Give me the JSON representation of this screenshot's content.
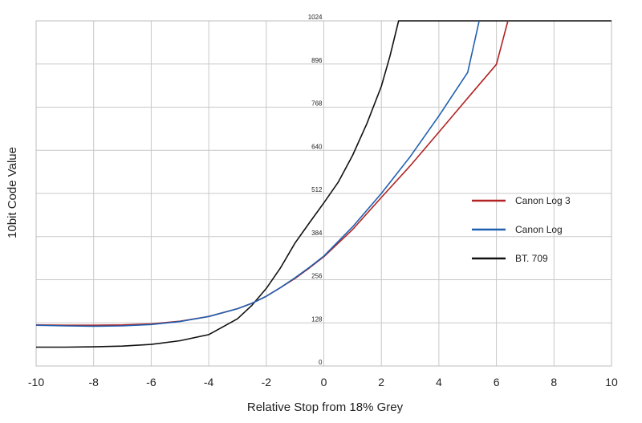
{
  "chart_data": {
    "type": "line",
    "title": "",
    "xlabel": "Relative Stop from 18% Grey",
    "ylabel": "10bit Code Value",
    "xlim": [
      -10,
      10
    ],
    "ylim": [
      0,
      1024
    ],
    "grid": true,
    "legend_position": "right",
    "x_ticks": [
      "-10",
      "-8",
      "-6",
      "-4",
      "-2",
      "0",
      "2",
      "4",
      "6",
      "8",
      "10"
    ],
    "y_ticks": [
      "0",
      "128",
      "256",
      "384",
      "512",
      "640",
      "768",
      "896",
      "1024"
    ],
    "series": [
      {
        "name": "Canon Log 3",
        "color": "#b22222",
        "points": [
          [
            -10,
            122
          ],
          [
            -9,
            121
          ],
          [
            -8,
            121
          ],
          [
            -7,
            122
          ],
          [
            -6,
            125
          ],
          [
            -5,
            133
          ],
          [
            -4,
            147
          ],
          [
            -3,
            170
          ],
          [
            -2.5,
            186
          ],
          [
            -2,
            207
          ],
          [
            -1.5,
            233
          ],
          [
            -1,
            260
          ],
          [
            -0.5,
            291
          ],
          [
            0,
            324
          ],
          [
            1,
            405
          ],
          [
            2,
            500
          ],
          [
            3,
            594
          ],
          [
            4,
            694
          ],
          [
            5,
            795
          ],
          [
            6,
            895
          ],
          [
            6.4,
            1024
          ]
        ]
      },
      {
        "name": "Canon Log",
        "color": "#1f5fb0",
        "points": [
          [
            -10,
            121
          ],
          [
            -9,
            119
          ],
          [
            -8,
            118
          ],
          [
            -7,
            119
          ],
          [
            -6,
            123
          ],
          [
            -5,
            132
          ],
          [
            -4,
            147
          ],
          [
            -3,
            170
          ],
          [
            -2.5,
            186
          ],
          [
            -2,
            207
          ],
          [
            -1.5,
            233
          ],
          [
            -1,
            262
          ],
          [
            -0.5,
            293
          ],
          [
            0,
            326
          ],
          [
            1,
            413
          ],
          [
            2,
            512
          ],
          [
            3,
            621
          ],
          [
            4,
            742
          ],
          [
            5,
            871
          ],
          [
            5.4,
            1024
          ]
        ]
      },
      {
        "name": "BT. 709",
        "color": "#111111",
        "points": [
          [
            -10,
            56
          ],
          [
            -9,
            56
          ],
          [
            -8,
            57
          ],
          [
            -7,
            59
          ],
          [
            -6,
            64
          ],
          [
            -5,
            75
          ],
          [
            -4,
            93
          ],
          [
            -3,
            140
          ],
          [
            -2.5,
            180
          ],
          [
            -2,
            230
          ],
          [
            -1.5,
            292
          ],
          [
            -1,
            365
          ],
          [
            -0.5,
            425
          ],
          [
            0,
            484
          ],
          [
            0.5,
            545
          ],
          [
            1,
            625
          ],
          [
            1.5,
            720
          ],
          [
            2,
            830
          ],
          [
            2.3,
            920
          ],
          [
            2.6,
            1024
          ],
          [
            10,
            1024
          ]
        ]
      }
    ]
  }
}
